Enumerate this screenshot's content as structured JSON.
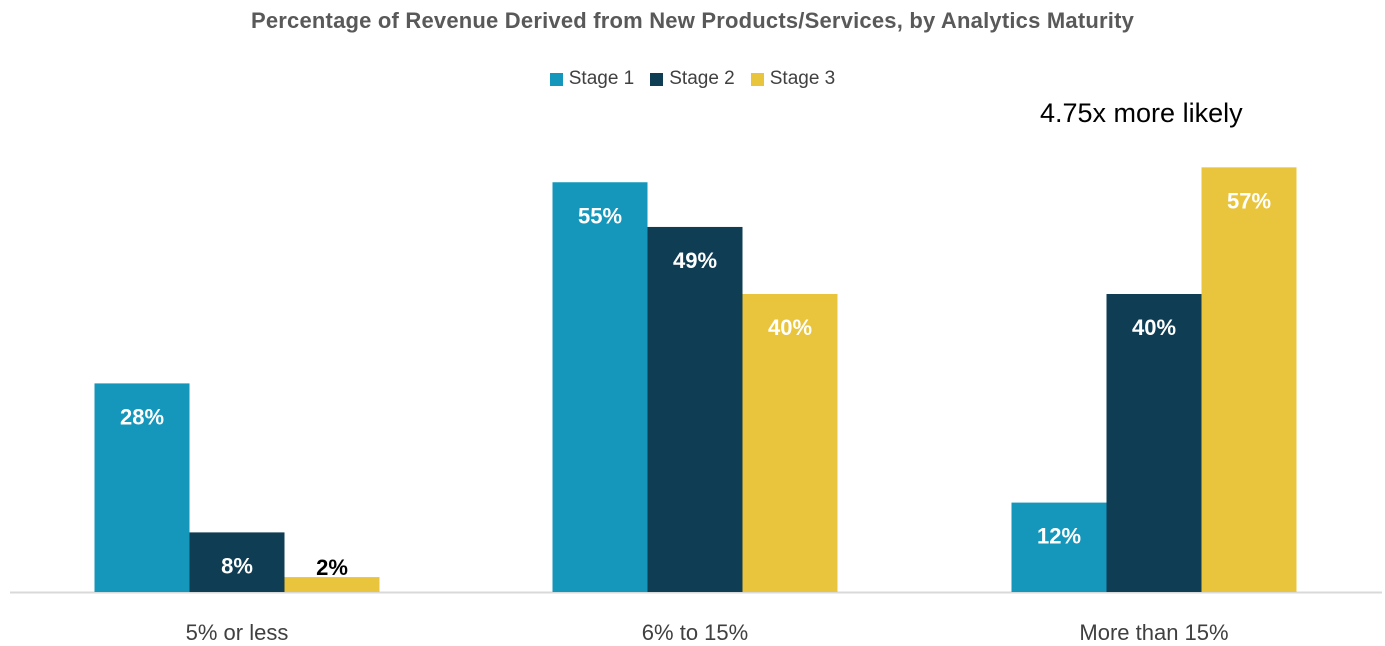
{
  "chart_data": {
    "type": "bar",
    "title": "Percentage of Revenue Derived from New Products/Services, by Analytics Maturity",
    "categories": [
      "5% or less",
      "6% to 15%",
      "More than 15%"
    ],
    "series": [
      {
        "name": "Stage 1",
        "values": [
          28,
          55,
          12
        ],
        "labels": [
          "28%",
          "55%",
          "12%"
        ],
        "color": "#1596BB"
      },
      {
        "name": "Stage 2",
        "values": [
          8,
          49,
          40
        ],
        "labels": [
          "8%",
          "49%",
          "40%"
        ],
        "color": "#0E3D54"
      },
      {
        "name": "Stage 3",
        "values": [
          2,
          40,
          57
        ],
        "labels": [
          "2%",
          "40%",
          "57%"
        ],
        "color": "#E9C53E"
      }
    ],
    "annotation": "4.75x more likely",
    "xlabel": "",
    "ylabel": "",
    "ylim": [
      0,
      60
    ],
    "grid": false,
    "legend_position": "top-center"
  }
}
